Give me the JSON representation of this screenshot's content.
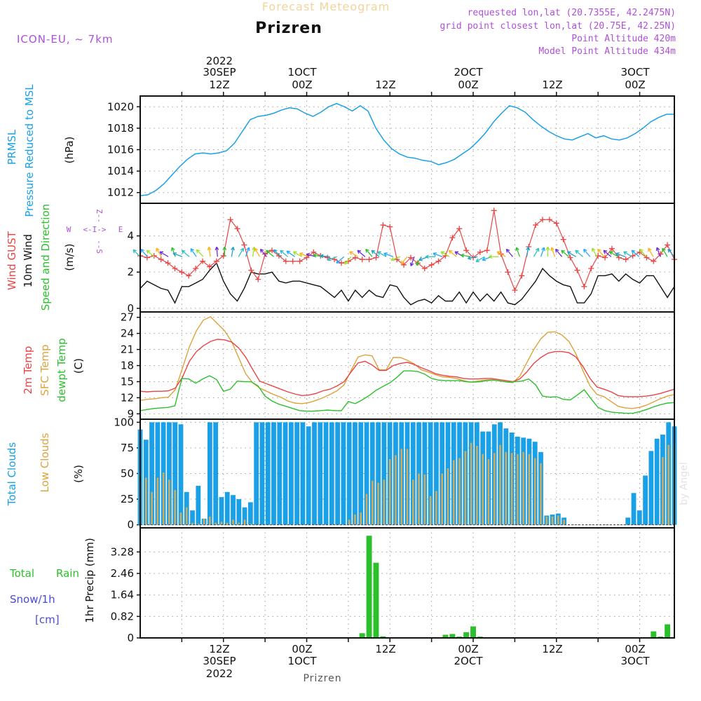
{
  "header": {
    "forecast_title": "Forecast Meteogram",
    "station": "Prizren",
    "model": "ICON-EU, ~ 7km",
    "requested": "requested lon,lat (20.7355E, 42.2475N)",
    "grid_point": "grid point closest lon,lat (20.75E, 42.25N)",
    "point_altitude": "Point Altitude 420m",
    "model_altitude": "Model Point Altitude 434m",
    "footer_station": "Prizren",
    "watermark": "by Angel"
  },
  "colors": {
    "pressure": "#1aa0e6",
    "gust": "#e84545",
    "wind": "#111111",
    "temp2m": "#e84545",
    "sfc": "#dea23a",
    "dew": "#2cc02c",
    "total_clouds": "#1aa0e6",
    "low_clouds": "#d8aa58",
    "precip": "#2cc02c",
    "labels_purple": "#b04fd8"
  },
  "chart_data": {
    "type": "line",
    "time_axis": {
      "top_year": "2022",
      "bottom_year": "2022",
      "ticks": [
        {
          "hour": 12,
          "date": "30SEP",
          "time": "12Z"
        },
        {
          "hour": 24,
          "date": "1OCT",
          "time": "00Z"
        },
        {
          "hour": 36,
          "date": "",
          "time": "12Z"
        },
        {
          "hour": 48,
          "date": "2OCT",
          "time": "00Z"
        },
        {
          "hour": 60,
          "date": "",
          "time": "12Z"
        },
        {
          "hour": 72,
          "date": "3OCT",
          "time": "00Z"
        }
      ],
      "start_hour": 0,
      "end_hour": 77
    },
    "panels": {
      "pressure": {
        "label_primary": "PRMSL",
        "label_secondary": "Pressure Reduced to MSL",
        "unit": "(hPa)",
        "ylim": [
          1011,
          1021
        ],
        "yticks": [
          1012,
          1014,
          1016,
          1018,
          1020
        ],
        "values": [
          1011.7,
          1011.8,
          1012.2,
          1012.8,
          1013.6,
          1014.4,
          1015.1,
          1015.6,
          1015.7,
          1015.6,
          1015.7,
          1015.9,
          1016.6,
          1017.7,
          1018.8,
          1019.1,
          1019.2,
          1019.4,
          1019.7,
          1019.9,
          1019.8,
          1019.4,
          1019.1,
          1019.5,
          1020.0,
          1020.3,
          1020.0,
          1019.6,
          1020.1,
          1019.6,
          1018.0,
          1016.9,
          1016.1,
          1015.6,
          1015.3,
          1015.2,
          1015.0,
          1014.9,
          1014.6,
          1014.8,
          1015.1,
          1015.6,
          1016.1,
          1016.8,
          1017.6,
          1018.6,
          1019.4,
          1020.1,
          1019.9,
          1019.5,
          1018.8,
          1018.2,
          1017.7,
          1017.3,
          1017.0,
          1016.9,
          1017.2,
          1017.5,
          1017.1,
          1017.3,
          1017.0,
          1016.9,
          1017.1,
          1017.5,
          1018.0,
          1018.6,
          1019.0,
          1019.3,
          1019.3
        ]
      },
      "wind": {
        "label_gust": "Wind GUST",
        "label_wind": "10m Wind",
        "label_dir": "Speed and Direction",
        "unit": "(m/s)",
        "ylim": [
          -0.2,
          5.8
        ],
        "yticks": [
          0,
          2,
          4
        ],
        "compass": {
          "w": "W",
          "e": "E",
          "arrows": "<-I->",
          "n_stack": "Z--",
          "s_stack": "--S"
        },
        "gust": [
          2.9,
          2.8,
          2.9,
          2.7,
          2.5,
          2.2,
          2.0,
          1.8,
          2.2,
          2.6,
          2.3,
          2.6,
          2.9,
          4.9,
          4.4,
          3.5,
          2.1,
          1.6,
          3.0,
          3.2,
          2.9,
          2.6,
          2.6,
          2.6,
          2.8,
          3.1,
          2.9,
          2.8,
          2.7,
          2.5,
          2.6,
          2.8,
          2.7,
          2.7,
          2.8,
          4.6,
          4.5,
          2.7,
          2.4,
          2.8,
          2.5,
          2.2,
          2.4,
          2.6,
          2.9,
          3.9,
          4.4,
          3.2,
          2.8,
          3.1,
          3.2,
          5.4,
          3.0,
          2.0,
          1.0,
          1.8,
          3.4,
          4.6,
          4.9,
          4.9,
          4.7,
          3.8,
          2.8,
          2.1,
          1.2,
          2.2,
          2.9,
          2.8,
          3.3,
          2.8,
          2.7,
          2.9,
          3.1,
          2.8,
          2.6,
          3.0,
          3.5,
          2.7
        ],
        "speed": [
          1.1,
          1.5,
          1.3,
          1.1,
          1.0,
          0.3,
          1.2,
          1.2,
          1.4,
          1.6,
          2.1,
          2.5,
          1.5,
          0.8,
          0.4,
          1.1,
          2.0,
          1.9,
          1.9,
          2.0,
          1.5,
          1.4,
          1.5,
          1.5,
          1.4,
          1.3,
          1.2,
          0.9,
          0.6,
          1.0,
          0.4,
          1.0,
          0.6,
          1.0,
          0.7,
          0.6,
          1.3,
          1.2,
          0.6,
          0.2,
          0.4,
          0.5,
          0.3,
          0.7,
          0.4,
          0.4,
          0.9,
          0.3,
          0.9,
          0.4,
          0.8,
          0.4,
          0.9,
          0.3,
          0.2,
          0.5,
          1.0,
          1.5,
          2.2,
          1.8,
          1.5,
          1.3,
          1.2,
          0.3,
          0.3,
          0.8,
          1.8,
          1.8,
          1.9,
          1.5,
          1.9,
          1.6,
          1.4,
          1.8,
          1.8,
          1.2,
          0.6,
          1.2
        ]
      },
      "temp": {
        "label_2m": "2m Temp",
        "label_sfc": "SFC Temp",
        "label_dew": "dewpt Temp",
        "unit": "(C)",
        "ylim": [
          8,
          28
        ],
        "yticks": [
          9,
          12,
          15,
          18,
          21,
          24,
          27
        ],
        "temp2m": [
          13.2,
          13.1,
          13.2,
          13.2,
          13.3,
          13.8,
          15.8,
          18.8,
          20.6,
          21.7,
          22.5,
          22.9,
          22.8,
          22.4,
          21.3,
          19.6,
          17.3,
          15.1,
          14.6,
          14.1,
          13.6,
          13.1,
          12.7,
          12.4,
          12.5,
          12.8,
          13.3,
          13.6,
          14.2,
          15.0,
          16.8,
          18.5,
          18.8,
          18.1,
          17.1,
          17.1,
          18.0,
          18.4,
          18.6,
          18.2,
          17.6,
          17.1,
          16.5,
          16.2,
          16.0,
          15.9,
          15.6,
          15.5,
          15.5,
          15.6,
          15.6,
          15.4,
          15.2,
          15.0,
          15.5,
          16.8,
          18.4,
          19.5,
          20.3,
          20.6,
          20.6,
          20.4,
          19.6,
          17.8,
          15.6,
          14.0,
          13.6,
          13.1,
          12.4,
          12.2,
          12.2,
          12.2,
          12.3,
          12.5,
          12.8,
          13.2,
          13.6
        ],
        "sfc": [
          11.5,
          11.7,
          11.8,
          12.0,
          12.1,
          13.5,
          17.5,
          21.5,
          24.5,
          26.5,
          27.1,
          25.8,
          24.5,
          22.5,
          19.5,
          16.5,
          14.8,
          13.8,
          13.2,
          12.6,
          12.1,
          11.4,
          11.0,
          10.9,
          11.1,
          11.5,
          12.0,
          12.6,
          13.3,
          14.4,
          17.1,
          19.6,
          20.0,
          19.8,
          17.2,
          17.2,
          19.5,
          19.5,
          19.0,
          18.3,
          17.2,
          16.8,
          16.3,
          15.9,
          15.8,
          15.6,
          15.2,
          14.9,
          15.1,
          15.3,
          15.4,
          15.2,
          15.0,
          14.8,
          16.0,
          18.5,
          21.0,
          23.0,
          24.2,
          24.3,
          23.7,
          22.5,
          20.2,
          17.0,
          14.2,
          12.6,
          12.2,
          11.3,
          10.4,
          10.1,
          10.0,
          10.2,
          10.6,
          11.2,
          11.8,
          12.3,
          12.6
        ],
        "dew": [
          9.6,
          9.8,
          10.0,
          10.1,
          10.2,
          10.5,
          15.6,
          15.5,
          14.7,
          15.5,
          16.1,
          15.4,
          13.2,
          13.6,
          15.1,
          15.0,
          15.0,
          14.2,
          12.3,
          11.4,
          10.8,
          10.4,
          10.0,
          9.6,
          9.5,
          9.5,
          9.6,
          9.7,
          9.6,
          9.6,
          11.3,
          10.9,
          11.6,
          12.4,
          13.4,
          14.1,
          14.8,
          15.8,
          17.0,
          17.0,
          16.9,
          16.4,
          15.6,
          15.3,
          15.2,
          15.2,
          15.2,
          15.0,
          14.9,
          15.0,
          15.2,
          15.3,
          15.1,
          14.9,
          15.0,
          15.1,
          15.5,
          14.4,
          12.3,
          12.1,
          12.2,
          11.7,
          11.6,
          12.5,
          13.5,
          11.8,
          10.2,
          9.6,
          9.3,
          9.2,
          9.1,
          9.1,
          9.4,
          9.8,
          10.3,
          10.7,
          11.0,
          11.1
        ]
      },
      "clouds": {
        "label_total": "Total Clouds",
        "label_low": "Low Clouds",
        "unit": "(%)",
        "ylim": [
          -3,
          103
        ],
        "yticks": [
          0,
          25,
          50,
          75,
          100
        ],
        "total": [
          93,
          83,
          100,
          100,
          100,
          100,
          100,
          98,
          32,
          14,
          38,
          6,
          100,
          100,
          27,
          32,
          29,
          25,
          17,
          22,
          100,
          100,
          100,
          100,
          100,
          100,
          100,
          100,
          100,
          96,
          100,
          100,
          100,
          100,
          100,
          100,
          100,
          100,
          100,
          100,
          100,
          100,
          100,
          100,
          100,
          100,
          100,
          100,
          100,
          100,
          100,
          100,
          100,
          100,
          100,
          100,
          100,
          100,
          100,
          91,
          91,
          98,
          100,
          94,
          90,
          86,
          85,
          84,
          81,
          71,
          9,
          10,
          11,
          7,
          0,
          0,
          0,
          0,
          0,
          0,
          0,
          0,
          0,
          0,
          7,
          31,
          14,
          48,
          72,
          84,
          88,
          100,
          96
        ],
        "low": [
          50,
          46,
          32,
          46,
          51,
          44,
          34,
          12,
          17,
          2,
          1,
          6,
          8,
          2,
          3,
          2,
          5,
          2,
          5,
          1,
          0,
          0,
          0,
          0,
          0,
          0,
          0,
          0,
          0,
          0,
          0,
          0,
          0,
          0,
          0,
          0,
          5,
          10,
          12,
          30,
          43,
          41,
          44,
          64,
          68,
          74,
          74,
          44,
          50,
          49,
          28,
          33,
          50,
          55,
          63,
          65,
          72,
          80,
          77,
          69,
          64,
          70,
          78,
          71,
          70,
          69,
          71,
          69,
          65,
          60,
          8,
          8,
          9,
          5,
          0,
          0,
          0,
          0,
          0,
          0,
          0,
          0,
          0,
          0,
          0,
          0,
          0,
          0,
          0,
          0,
          66,
          78,
          80,
          80,
          75
        ]
      },
      "precip": {
        "label_total": "Total",
        "label_rain": "Rain",
        "label_snow": "Snow/1h",
        "label_cm": "[cm]",
        "ylabel": "1hr Precip (mm)",
        "ylim": [
          0,
          4.2
        ],
        "yticks": [
          "0",
          "0.82",
          "1.64",
          "2.46",
          "3.28"
        ],
        "ytick_values": [
          0,
          0.82,
          1.64,
          2.46,
          3.28
        ],
        "bars": [
          {
            "hour": 32,
            "value": 0.18
          },
          {
            "hour": 33,
            "value": 3.9
          },
          {
            "hour": 34,
            "value": 2.87
          },
          {
            "hour": 35,
            "value": 0.06
          },
          {
            "hour": 44,
            "value": 0.12
          },
          {
            "hour": 45,
            "value": 0.15
          },
          {
            "hour": 46,
            "value": 0.05
          },
          {
            "hour": 47,
            "value": 0.22
          },
          {
            "hour": 48,
            "value": 0.44
          },
          {
            "hour": 49,
            "value": 0.05
          },
          {
            "hour": 74,
            "value": 0.25
          },
          {
            "hour": 75,
            "value": 0.05
          },
          {
            "hour": 76,
            "value": 0.52
          }
        ]
      }
    }
  }
}
